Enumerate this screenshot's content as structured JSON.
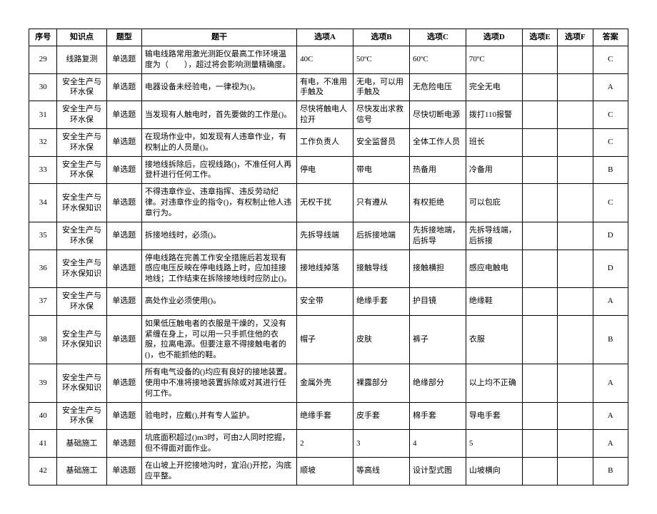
{
  "columns": [
    "序号",
    "知识点",
    "题型",
    "题干",
    "选项A",
    "选项B",
    "选项C",
    "选项D",
    "选项E",
    "选项F",
    "答案"
  ],
  "rows": [
    {
      "seq": "29",
      "kp": "线路复测",
      "type": "单选题",
      "stem": "输电线路常用激光测距仪最高工作环境温度为（　　），超过将会影响测量精确度。",
      "A": "40C",
      "B": "50ºC",
      "C": "60ºC",
      "D": "70ºC",
      "E": "",
      "F": "",
      "ans": "C"
    },
    {
      "seq": "30",
      "kp": "安全生产与环水保",
      "type": "单选题",
      "stem": "电器设备未经验电，一律视为()。",
      "A": "有电，不准用手触及",
      "B": "无电，可以用手触及",
      "C": "无危险电压",
      "D": "完全无电",
      "E": "",
      "F": "",
      "ans": "A"
    },
    {
      "seq": "31",
      "kp": "安全生产与环水保",
      "type": "单选题",
      "stem": "当发现有人触电时，首先要做的工作是()。",
      "A": "尽快将触电人拉开",
      "B": "尽快发出求救信号",
      "C": "尽快切断电源",
      "D": "拨打110报警",
      "E": "",
      "F": "",
      "ans": "C"
    },
    {
      "seq": "32",
      "kp": "安全生产与环水保",
      "type": "单选题",
      "stem": "在现场作业中，如发现有人违章作业，有权制止的人员是()。",
      "A": "工作负责人",
      "B": "安全监督员",
      "C": "全体工作人员",
      "D": "班长",
      "E": "",
      "F": "",
      "ans": "C"
    },
    {
      "seq": "33",
      "kp": "安全生产与环水保",
      "type": "单选题",
      "stem": "接地线拆除后，应视线路()，不准任何人再登杆进行任何工作。",
      "A": "停电",
      "B": "带电",
      "C": "热备用",
      "D": "冷备用",
      "E": "",
      "F": "",
      "ans": "B"
    },
    {
      "seq": "34",
      "kp": "安全生产与环水保知识",
      "type": "单选题",
      "stem": "不得违章作业、违章指挥、违反劳动纪律。对违章作业的指令()，有权制止他人违章行为。",
      "A": "无权干扰",
      "B": "只有遵从",
      "C": "有权拒绝",
      "D": "可以包庇",
      "E": "",
      "F": "",
      "ans": "C"
    },
    {
      "seq": "35",
      "kp": "安全生产与环水保",
      "type": "单选题",
      "stem": "拆接地线时，必须()。",
      "A": "先拆导线端",
      "B": "后拆接地端",
      "C": "先拆接地端，后拆导",
      "D": "先拆导线端，后拆接",
      "E": "",
      "F": "",
      "ans": "D"
    },
    {
      "seq": "36",
      "kp": "安全生产与环水保知识",
      "type": "单选题",
      "stem": "停电线路在完善工作安全措施后若发现有感应电压反映在停电线路上时，应加挂接地线；工作结束在拆除接地线时应防止()。",
      "A": "接地线掉落",
      "B": "接触导线",
      "C": "接触横担",
      "D": "感应电触电",
      "E": "",
      "F": "",
      "ans": "D"
    },
    {
      "seq": "37",
      "kp": "安全生产与环水保",
      "type": "单选题",
      "stem": "高处作业必须使用()。",
      "A": "安全带",
      "B": "绝缘手套",
      "C": "护目镜",
      "D": "绝缘鞋",
      "E": "",
      "F": "",
      "ans": "A"
    },
    {
      "seq": "38",
      "kp": "安全生产与环水保知识",
      "type": "单选题",
      "stem": "如果低压触电者的衣服是干燥的，又没有紧缠在身上，可以用一只手抓住他的衣服，拉离电源。但要注意不得接触电者的()，也不能抓他的鞋。",
      "A": "帽子",
      "B": "皮肤",
      "C": "裤子",
      "D": "衣服",
      "E": "",
      "F": "",
      "ans": "B"
    },
    {
      "seq": "39",
      "kp": "安全生产与环水保知识",
      "type": "单选题",
      "stem": "所有电气设备的()均应有良好的接地装置。使用中不准将接地装置拆除或对其进行任何工作。",
      "A": "金属外壳",
      "B": "裸露部分",
      "C": "绝缘部分",
      "D": "以上均不正确",
      "E": "",
      "F": "",
      "ans": "A"
    },
    {
      "seq": "40",
      "kp": "安全生产与环水保",
      "type": "单选题",
      "stem": "验电时，应戴(),并有专人监护。",
      "A": "绝缘手套",
      "B": "皮手套",
      "C": "棉手套",
      "D": "导电手套",
      "E": "",
      "F": "",
      "ans": "A"
    },
    {
      "seq": "41",
      "kp": "基础施工",
      "type": "单选题",
      "stem": "坑底面积超过()m3时，可由2人同时挖掘，但不得面对面作业。",
      "A": "2",
      "B": "3",
      "C": "4",
      "D": "5",
      "E": "",
      "F": "",
      "ans": "A"
    },
    {
      "seq": "42",
      "kp": "基础施工",
      "type": "单选题",
      "stem": "在山坡上开挖接地沟时，宜沿()开挖，沟底应平整。",
      "A": "顺坡",
      "B": "等高线",
      "C": "设计型式图",
      "D": "山坡横向",
      "E": "",
      "F": "",
      "ans": "B"
    }
  ]
}
